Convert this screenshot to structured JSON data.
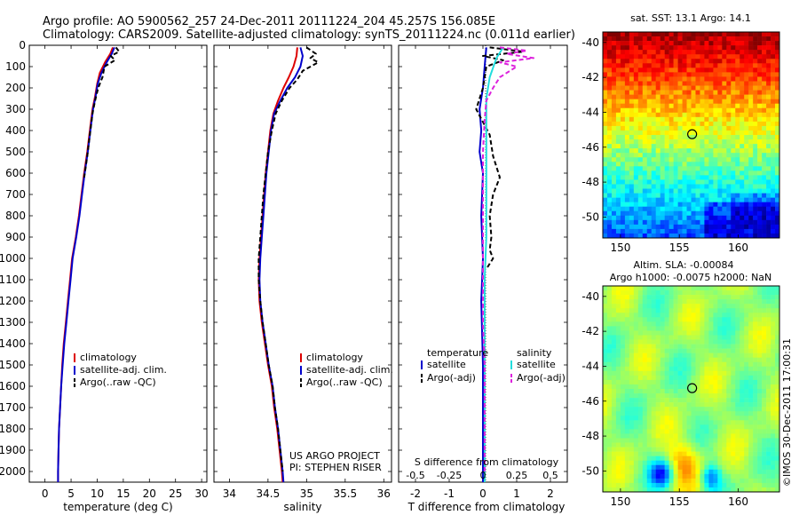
{
  "header": {
    "line1": "Argo profile: AO 5900562_257 24-Dec-2011 20111224_204 45.257S 156.085E",
    "line2": "Climatology: CARS2009. Satellite-adjusted climatology: synTS_20111224.nc (0.011d earlier)"
  },
  "colors": {
    "climatology": "#dd0000",
    "satellite": "#0000cc",
    "argo": "#000000",
    "sal_sat": "#22dddd",
    "sal_argo": "#dd22dd"
  },
  "chart_data": [
    {
      "type": "line",
      "id": "temperature",
      "xlabel": "temperature (deg C)",
      "ylabel": "",
      "xlim": [
        -3,
        31
      ],
      "ylim": [
        2050,
        0
      ],
      "xticks": [
        0,
        5,
        10,
        15,
        20,
        25,
        30
      ],
      "yticks": [
        0,
        100,
        200,
        300,
        400,
        500,
        600,
        700,
        800,
        900,
        1000,
        1100,
        1200,
        1300,
        1400,
        1500,
        1600,
        1700,
        1800,
        1900,
        2000
      ],
      "legend": {
        "position": "lower-right",
        "entries": [
          "climatology",
          "satellite-adj. clim.",
          "Argo(..raw -QC)"
        ]
      },
      "series": [
        {
          "name": "climatology",
          "color": "#dd0000",
          "style": "solid",
          "points": [
            [
              13.0,
              10
            ],
            [
              12.5,
              40
            ],
            [
              11.5,
              80
            ],
            [
              10.5,
              130
            ],
            [
              10.0,
              180
            ],
            [
              9.6,
              240
            ],
            [
              9.1,
              300
            ],
            [
              8.6,
              400
            ],
            [
              8.1,
              500
            ],
            [
              7.5,
              600
            ],
            [
              7.0,
              700
            ],
            [
              6.5,
              800
            ],
            [
              5.9,
              900
            ],
            [
              5.2,
              1000
            ],
            [
              4.8,
              1100
            ],
            [
              4.4,
              1200
            ],
            [
              4.0,
              1300
            ],
            [
              3.6,
              1400
            ],
            [
              3.3,
              1500
            ],
            [
              3.1,
              1600
            ],
            [
              2.9,
              1700
            ],
            [
              2.7,
              1800
            ],
            [
              2.6,
              1900
            ],
            [
              2.5,
              2000
            ],
            [
              2.5,
              2050
            ]
          ]
        },
        {
          "name": "satellite-adj. clim.",
          "color": "#0000cc",
          "style": "solid",
          "points": [
            [
              13.3,
              10
            ],
            [
              12.8,
              40
            ],
            [
              11.8,
              80
            ],
            [
              10.8,
              130
            ],
            [
              10.1,
              180
            ],
            [
              9.7,
              240
            ],
            [
              9.2,
              300
            ],
            [
              8.7,
              400
            ],
            [
              8.2,
              500
            ],
            [
              7.6,
              600
            ],
            [
              7.1,
              700
            ],
            [
              6.6,
              800
            ],
            [
              6.0,
              900
            ],
            [
              5.3,
              1000
            ],
            [
              4.9,
              1100
            ],
            [
              4.5,
              1200
            ],
            [
              4.1,
              1300
            ],
            [
              3.7,
              1400
            ],
            [
              3.4,
              1500
            ],
            [
              3.1,
              1600
            ],
            [
              2.9,
              1700
            ],
            [
              2.7,
              1800
            ],
            [
              2.6,
              1900
            ],
            [
              2.5,
              2000
            ],
            [
              2.5,
              2050
            ]
          ]
        },
        {
          "name": "Argo(..raw -QC)",
          "color": "#000000",
          "style": "dashed",
          "points": [
            [
              13.6,
              10
            ],
            [
              14.2,
              30
            ],
            [
              12.6,
              50
            ],
            [
              13.4,
              70
            ],
            [
              11.4,
              100
            ],
            [
              11.0,
              150
            ],
            [
              10.2,
              200
            ],
            [
              9.6,
              260
            ],
            [
              9.1,
              320
            ],
            [
              8.6,
              420
            ],
            [
              8.1,
              520
            ],
            [
              7.5,
              620
            ]
          ]
        }
      ]
    },
    {
      "type": "line",
      "id": "salinity",
      "xlabel": "salinity",
      "ylabel": "",
      "xlim": [
        33.8,
        36.1
      ],
      "ylim": [
        2050,
        0
      ],
      "xticks": [
        34,
        34.5,
        35,
        35.5,
        36
      ],
      "legend": {
        "position": "lower-right",
        "entries": [
          "climatology",
          "satellite-adj. clim.",
          "Argo(..raw -QC)"
        ]
      },
      "annotation": [
        "US ARGO PROJECT",
        "PI: STEPHEN RISER"
      ],
      "series": [
        {
          "name": "climatology",
          "color": "#dd0000",
          "style": "solid",
          "points": [
            [
              34.88,
              10
            ],
            [
              34.87,
              50
            ],
            [
              34.83,
              100
            ],
            [
              34.77,
              150
            ],
            [
              34.7,
              200
            ],
            [
              34.63,
              260
            ],
            [
              34.57,
              320
            ],
            [
              34.53,
              400
            ],
            [
              34.5,
              500
            ],
            [
              34.47,
              600
            ],
            [
              34.45,
              700
            ],
            [
              34.43,
              800
            ],
            [
              34.41,
              900
            ],
            [
              34.39,
              1000
            ],
            [
              34.38,
              1100
            ],
            [
              34.39,
              1200
            ],
            [
              34.42,
              1300
            ],
            [
              34.46,
              1400
            ],
            [
              34.5,
              1500
            ],
            [
              34.55,
              1600
            ],
            [
              34.58,
              1700
            ],
            [
              34.62,
              1800
            ],
            [
              34.65,
              1900
            ],
            [
              34.68,
              2000
            ],
            [
              34.69,
              2050
            ]
          ]
        },
        {
          "name": "satellite-adj. clim.",
          "color": "#0000cc",
          "style": "solid",
          "points": [
            [
              34.92,
              10
            ],
            [
              34.95,
              50
            ],
            [
              34.92,
              100
            ],
            [
              34.85,
              150
            ],
            [
              34.75,
              200
            ],
            [
              34.66,
              260
            ],
            [
              34.58,
              320
            ],
            [
              34.54,
              400
            ],
            [
              34.51,
              500
            ],
            [
              34.48,
              600
            ],
            [
              34.46,
              700
            ],
            [
              34.44,
              800
            ],
            [
              34.42,
              900
            ],
            [
              34.4,
              1000
            ],
            [
              34.39,
              1100
            ],
            [
              34.4,
              1200
            ],
            [
              34.43,
              1300
            ],
            [
              34.47,
              1400
            ],
            [
              34.51,
              1500
            ],
            [
              34.56,
              1600
            ],
            [
              34.59,
              1700
            ],
            [
              34.63,
              1800
            ],
            [
              34.66,
              1900
            ],
            [
              34.69,
              2000
            ],
            [
              34.7,
              2050
            ]
          ]
        },
        {
          "name": "Argo(..raw -QC)",
          "color": "#000000",
          "style": "dashed",
          "points": [
            [
              35.0,
              10
            ],
            [
              35.12,
              40
            ],
            [
              35.05,
              60
            ],
            [
              35.15,
              80
            ],
            [
              34.95,
              120
            ],
            [
              34.88,
              160
            ],
            [
              34.78,
              200
            ],
            [
              34.68,
              260
            ],
            [
              34.6,
              320
            ],
            [
              34.55,
              400
            ],
            [
              34.5,
              500
            ],
            [
              34.47,
              600
            ],
            [
              34.44,
              700
            ],
            [
              34.42,
              800
            ],
            [
              34.4,
              900
            ],
            [
              34.38,
              1000
            ],
            [
              34.38,
              1100
            ],
            [
              34.4,
              1200
            ],
            [
              34.43,
              1300
            ],
            [
              34.47,
              1400
            ],
            [
              34.51,
              1500
            ],
            [
              34.56,
              1600
            ],
            [
              34.59,
              1700
            ],
            [
              34.63,
              1800
            ],
            [
              34.66,
              1900
            ],
            [
              34.69,
              2000
            ]
          ]
        }
      ]
    },
    {
      "type": "line",
      "id": "difference",
      "xlabel": "T difference from climatology",
      "xlabel_top": "S difference from climatology",
      "xlim": [
        -2.5,
        2.5
      ],
      "ylim": [
        2050,
        0
      ],
      "xticks": [
        -2,
        -1,
        0,
        1,
        2
      ],
      "s_tick_labels": [
        "-0.5",
        "-0.25",
        "0",
        "0.25",
        "0.5"
      ],
      "legend": {
        "position": "lower",
        "group_titles": [
          "temperature",
          "salinity"
        ],
        "entries": [
          "satellite",
          "Argo(-adj)",
          "satellite",
          "Argo(-adj)"
        ]
      },
      "series": [
        {
          "name": "temperature satellite",
          "color": "#0000cc",
          "style": "solid",
          "points": [
            [
              0.1,
              10
            ],
            [
              0.05,
              100
            ],
            [
              0.0,
              200
            ],
            [
              -0.1,
              300
            ],
            [
              -0.05,
              400
            ],
            [
              -0.1,
              500
            ],
            [
              0.0,
              600
            ],
            [
              -0.05,
              800
            ],
            [
              0.0,
              1000
            ],
            [
              -0.05,
              1200
            ],
            [
              0.0,
              1500
            ],
            [
              0.0,
              2050
            ]
          ]
        },
        {
          "name": "temperature Argo(-adj)",
          "color": "#000000",
          "style": "dashed",
          "points": [
            [
              0.2,
              10
            ],
            [
              1.2,
              30
            ],
            [
              0.0,
              50
            ],
            [
              0.6,
              70
            ],
            [
              0.1,
              100
            ],
            [
              0.0,
              200
            ],
            [
              -0.2,
              300
            ],
            [
              0.2,
              420
            ],
            [
              0.3,
              520
            ],
            [
              0.5,
              620
            ],
            [
              0.3,
              700
            ],
            [
              0.2,
              800
            ],
            [
              0.25,
              900
            ],
            [
              0.2,
              960
            ],
            [
              0.3,
              1000
            ],
            [
              0.1,
              1050
            ]
          ]
        },
        {
          "name": "salinity satellite",
          "color": "#22dddd",
          "style": "solid",
          "points": [
            [
              0.6,
              10
            ],
            [
              0.4,
              60
            ],
            [
              0.2,
              150
            ],
            [
              0.1,
              250
            ],
            [
              0.1,
              350
            ],
            [
              0.1,
              500
            ],
            [
              0.1,
              700
            ],
            [
              0.1,
              900
            ],
            [
              0.05,
              1100
            ],
            [
              0.05,
              1300
            ],
            [
              0.05,
              1600
            ],
            [
              0.05,
              2050
            ]
          ]
        },
        {
          "name": "salinity Argo(-adj)",
          "color": "#dd22dd",
          "style": "dashed",
          "points": [
            [
              0.5,
              10
            ],
            [
              1.3,
              25
            ],
            [
              0.7,
              40
            ],
            [
              1.5,
              60
            ],
            [
              0.5,
              80
            ],
            [
              1.0,
              100
            ],
            [
              0.5,
              150
            ],
            [
              0.3,
              200
            ],
            [
              0.1,
              260
            ],
            [
              0.05,
              350
            ],
            [
              0.0,
              500
            ],
            [
              0.0,
              700
            ],
            [
              0.0,
              900
            ],
            [
              0.0,
              1100
            ],
            [
              0.0,
              1300
            ],
            [
              0.05,
              1500
            ],
            [
              0.05,
              1700
            ],
            [
              0.05,
              1900
            ],
            [
              0.05,
              2000
            ]
          ]
        }
      ]
    },
    {
      "type": "heatmap",
      "id": "sst-map",
      "title": "sat. SST: 13.1 Argo: 14.1",
      "xticks": [
        150,
        155,
        160
      ],
      "yticks": [
        -40,
        -42,
        -44,
        -46,
        -48,
        -50
      ],
      "xlim": [
        148.5,
        163.5
      ],
      "ylim": [
        -51.2,
        -39.4
      ],
      "marker": {
        "lon": 156.085,
        "lat": -45.257
      }
    },
    {
      "type": "heatmap",
      "id": "sla-map",
      "title_line1": "Altim. SLA: -0.00084",
      "title_line2": "Argo h1000: -0.0075 h2000: NaN",
      "xticks": [
        150,
        155,
        160
      ],
      "yticks": [
        -40,
        -42,
        -44,
        -46,
        -48,
        -50
      ],
      "xlim": [
        148.5,
        163.5
      ],
      "ylim": [
        -51.2,
        -39.4
      ],
      "marker": {
        "lon": 156.085,
        "lat": -45.257
      }
    }
  ],
  "watermark": "©IMOS 30-Dec-2011 17:00:31"
}
